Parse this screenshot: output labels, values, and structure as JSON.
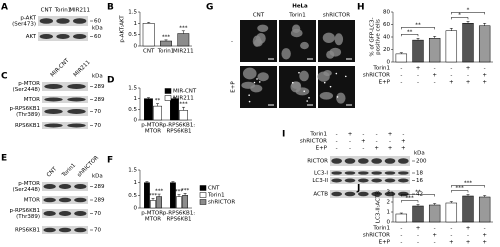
{
  "figure": {
    "A": {
      "label": "A",
      "lanes": [
        "CNT",
        "Torin1",
        "MIR211"
      ],
      "rows": [
        {
          "name": "p-AKT",
          "site": "(Ser473)",
          "kda": 60
        },
        {
          "name": "AKT",
          "kda": 60
        }
      ],
      "unit": "kDa"
    },
    "B": {
      "label": "B",
      "ylabel": [
        "p-AKT:AKT"
      ],
      "ylim": [
        0,
        1.5
      ],
      "yticks": [
        0,
        0.5,
        1,
        1.5
      ],
      "categories": [
        [
          "CNT"
        ],
        [
          "Torin1"
        ],
        [
          "MIR211"
        ]
      ],
      "series": [
        {
          "colors": [
            "#ffffff",
            "#8c8c8c",
            "#8c8c8c"
          ],
          "values": [
            1,
            0.22,
            0.55
          ],
          "errors": [
            0.04,
            0.05,
            0.12
          ],
          "stars": [
            null,
            "***",
            "***"
          ]
        }
      ]
    },
    "C": {
      "label": "C",
      "lanes": [
        "MIR-CNT",
        "MIR211"
      ],
      "rows": [
        {
          "name": "p-MTOR",
          "site": "(Ser2448)",
          "kda": 289
        },
        {
          "name": "MTOR",
          "kda": 289
        },
        {
          "name": "p-RPS6KB1",
          "site": "(Thr389)",
          "kda": 70
        },
        {
          "name": "RPS6KB1",
          "kda": 70
        }
      ],
      "unit": "kDa"
    },
    "D": {
      "label": "D",
      "ylim": [
        0,
        1.5
      ],
      "yticks": [
        0,
        0.5,
        1,
        1.5
      ],
      "categories": [
        [
          "p-MTOR:",
          "MTOR"
        ],
        [
          "p-RPS6KB1:",
          "RPS6KB1"
        ]
      ],
      "series": [
        {
          "name": "MIR-CNT",
          "color": "#000000",
          "values": [
            1,
            1
          ],
          "errors": [
            0.05,
            0.05
          ]
        },
        {
          "name": "MIR211",
          "color": "#ffffff",
          "values": [
            0.65,
            0.45
          ],
          "errors": [
            0.12,
            0.15
          ],
          "stars": [
            "**",
            "***"
          ]
        }
      ]
    },
    "E": {
      "label": "E",
      "lanes": [
        "CNT",
        "Torin1",
        "shRICTOR"
      ],
      "rows": [
        {
          "name": "p-MTOR",
          "site": "(Ser2448)",
          "kda": 289
        },
        {
          "name": "MTOR",
          "kda": 289
        },
        {
          "name": "p-RPS6KB1",
          "site": "(Thr389)",
          "kda": 70
        },
        {
          "name": "RPS6KB1",
          "kda": 70
        }
      ],
      "unit": "kDa"
    },
    "F": {
      "label": "F",
      "ylim": [
        0,
        1.5
      ],
      "yticks": [
        0,
        0.5,
        1,
        1.5
      ],
      "categories": [
        [
          "p-MTOR:",
          "MTOR"
        ],
        [
          "p-RPS6KB1:",
          "RPS6KB1"
        ]
      ],
      "series": [
        {
          "name": "CNT",
          "color": "#000000",
          "values": [
            1,
            1
          ],
          "errors": [
            0.04,
            0.04
          ]
        },
        {
          "name": "Torin1",
          "color": "#ffffff",
          "values": [
            0.3,
            0.45
          ],
          "errors": [
            0.08,
            0.08
          ],
          "stars": [
            "***",
            "***"
          ]
        },
        {
          "name": "shRICTOR",
          "color": "#8c8c8c",
          "values": [
            0.45,
            0.5
          ],
          "errors": [
            0.1,
            0.08
          ],
          "stars": [
            "***",
            "***"
          ]
        }
      ]
    },
    "G": {
      "label": "G",
      "cell": "HeLa",
      "columns": [
        "CNT",
        "Torin1",
        "shRICTOR"
      ],
      "rows": [
        "-",
        "E+P"
      ]
    },
    "H": {
      "label": "H",
      "ylabel": [
        "% of GFP-LC3-",
        "positive cells"
      ],
      "ylim": [
        0,
        80
      ],
      "yticks": [
        0,
        20,
        40,
        60,
        80
      ],
      "series": [
        {
          "colors": [
            "#ffffff",
            "#555555",
            "#9a9a9a",
            "#ffffff",
            "#555555",
            "#9a9a9a"
          ],
          "values": [
            13,
            35,
            38,
            50,
            62,
            58
          ],
          "errors": [
            2,
            3,
            3,
            4,
            3,
            4
          ]
        }
      ],
      "brackets": [
        {
          "bars": [
            0,
            1
          ],
          "label": "**"
        },
        {
          "bars": [
            0,
            2
          ],
          "label": "**"
        },
        {
          "bars": [
            3,
            4
          ],
          "label": "*"
        },
        {
          "bars": [
            3,
            5
          ],
          "label": "*"
        }
      ],
      "conditions": [
        {
          "name": "Torin1",
          "signs": [
            "-",
            "+",
            "-",
            "-",
            "+",
            "-"
          ]
        },
        {
          "name": "shRICTOR",
          "signs": [
            "-",
            "-",
            "+",
            "-",
            "-",
            "+"
          ]
        },
        {
          "name": "E+P",
          "signs": [
            "-",
            "-",
            "-",
            "+",
            "+",
            "+"
          ]
        }
      ]
    },
    "I": {
      "label": "I",
      "conditions": [
        {
          "name": "Torin1",
          "signs": [
            "-",
            "+",
            "-",
            "-",
            "+",
            "-"
          ]
        },
        {
          "name": "shRICTOR",
          "signs": [
            "-",
            "-",
            "+",
            "-",
            "-",
            "+"
          ]
        },
        {
          "name": "E+P",
          "signs": [
            "-",
            "-",
            "-",
            "+",
            "+",
            "+"
          ]
        }
      ],
      "rows": [
        {
          "name": "RICTOR",
          "kda": 200
        },
        {
          "name": "LC3-I",
          "kda": 18
        },
        {
          "name": "LC3-II",
          "kda": 16
        },
        {
          "name": "ACTB",
          "kda": 42
        }
      ],
      "unit": "kDa"
    },
    "J": {
      "label": "J",
      "ylabel": [
        "LC3-II:ACTB"
      ],
      "ylim": [
        0,
        3
      ],
      "yticks": [
        0,
        1,
        2,
        3
      ],
      "series": [
        {
          "colors": [
            "#ffffff",
            "#555555",
            "#9a9a9a",
            "#ffffff",
            "#555555",
            "#9a9a9a"
          ],
          "values": [
            0.8,
            1.6,
            1.7,
            1.9,
            2.6,
            2.5
          ],
          "errors": [
            0.1,
            0.15,
            0.15,
            0.15,
            0.15,
            0.15
          ]
        }
      ],
      "brackets": [
        {
          "bars": [
            0,
            1
          ],
          "label": "***"
        },
        {
          "bars": [
            0,
            2
          ],
          "label": "**"
        },
        {
          "bars": [
            3,
            4
          ],
          "label": "***"
        },
        {
          "bars": [
            3,
            5
          ],
          "label": "***"
        }
      ],
      "conditions": [
        {
          "name": "Torin1",
          "signs": [
            "-",
            "+",
            "-",
            "-",
            "+",
            "-"
          ]
        },
        {
          "name": "shRICTOR",
          "signs": [
            "-",
            "-",
            "+",
            "-",
            "-",
            "+"
          ]
        },
        {
          "name": "E+P",
          "signs": [
            "-",
            "-",
            "-",
            "+",
            "+",
            "+"
          ]
        }
      ]
    }
  }
}
